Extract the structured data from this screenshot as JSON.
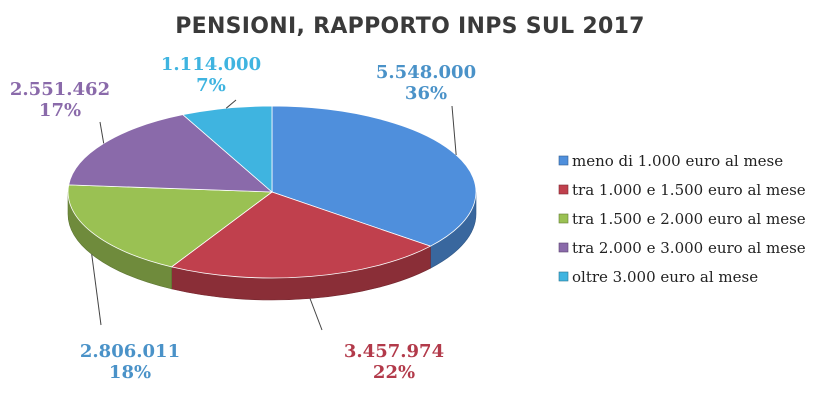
{
  "chart_data": {
    "type": "pie",
    "title": "PENSIONI, RAPPORTO INPS SUL 2017",
    "categories": [
      "meno di 1.000 euro al mese",
      "tra 1.000 e 1.500 euro al mese",
      "tra 1.500 e 2.000 euro al mese",
      "tra 2.000 e 3.000 euro al mese",
      "oltre 3.000 euro al mese"
    ],
    "values": [
      5548000,
      3457974,
      2806011,
      2551462,
      1114000
    ],
    "value_labels": [
      "5.548.000",
      "3.457.974",
      "2.806.011",
      "2.551.462",
      "1.114.000"
    ],
    "percent_labels": [
      "36%",
      "22%",
      "18%",
      "17%",
      "7%"
    ],
    "colors": [
      "#4f8fdc",
      "#c0404d",
      "#9ac153",
      "#8a6aaa",
      "#3fb4e0"
    ],
    "label_colors": [
      "#4a92c8",
      "#b23a4a",
      "#4a92c8",
      "#8a6aaa",
      "#3fb4e0"
    ],
    "legend_position": "right",
    "style": "3d"
  }
}
